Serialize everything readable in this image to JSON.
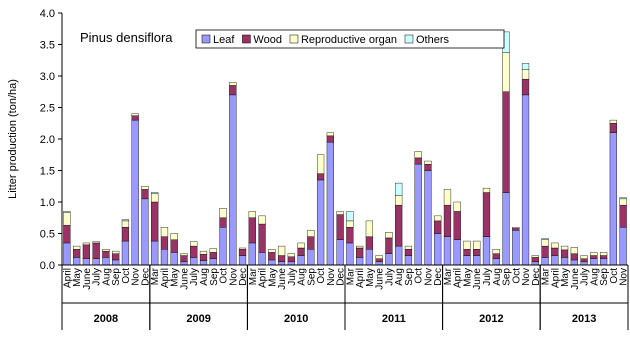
{
  "chart_data": {
    "type": "stacked_bar",
    "title": "Pinus densiflora",
    "y_label": "Litter production (ton/ha)",
    "groups": [
      {
        "label": "2008",
        "categories": [
          "April",
          "May",
          "June",
          "July",
          "Aug",
          "Sep",
          "Oct",
          "Nov",
          "Dec"
        ]
      },
      {
        "label": "2009",
        "categories": [
          "Mar",
          "April",
          "May",
          "June",
          "July",
          "Aug",
          "Sep",
          "Oct",
          "Nov",
          "Dec"
        ]
      },
      {
        "label": "2010",
        "categories": [
          "Mar",
          "April",
          "May",
          "June",
          "July",
          "Aug",
          "Sep",
          "Oct",
          "Nov",
          "Dec"
        ]
      },
      {
        "label": "2011",
        "categories": [
          "Mar",
          "April",
          "May",
          "June",
          "July",
          "Aug",
          "Sep",
          "Oct",
          "Nov",
          "Dec"
        ]
      },
      {
        "label": "2012",
        "categories": [
          "Mar",
          "April",
          "May",
          "June",
          "July",
          "Aug",
          "Sep",
          "Oct",
          "Nov",
          "Dec"
        ]
      },
      {
        "label": "2013",
        "categories": [
          "Mar",
          "April",
          "May",
          "June",
          "July",
          "Aug",
          "Sep",
          "Oct",
          "Nov"
        ]
      }
    ],
    "series": [
      {
        "name": "Leaf",
        "color": "#9999ff",
        "values": [
          0.35,
          0.12,
          0.1,
          0.1,
          0.12,
          0.08,
          0.38,
          2.3,
          1.05,
          0.38,
          0.25,
          0.2,
          0.05,
          0.12,
          0.07,
          0.1,
          0.6,
          2.7,
          0.15,
          0.35,
          0.2,
          0.08,
          0.05,
          0.05,
          0.15,
          0.25,
          1.35,
          1.95,
          0.4,
          0.35,
          0.12,
          0.25,
          0.05,
          0.18,
          0.3,
          0.15,
          1.6,
          1.5,
          0.5,
          0.45,
          0.4,
          0.15,
          0.15,
          0.45,
          0.1,
          1.15,
          0.55,
          2.7,
          0.05,
          0.12,
          0.15,
          0.12,
          0.08,
          0.05,
          0.1,
          0.1,
          2.1,
          0.6
        ]
      },
      {
        "name": "Wood",
        "color": "#993366",
        "values": [
          0.28,
          0.13,
          0.22,
          0.25,
          0.1,
          0.1,
          0.22,
          0.07,
          0.15,
          0.62,
          0.2,
          0.2,
          0.1,
          0.18,
          0.1,
          0.1,
          0.15,
          0.15,
          0.1,
          0.4,
          0.45,
          0.12,
          0.1,
          0.08,
          0.12,
          0.2,
          0.1,
          0.1,
          0.4,
          0.25,
          0.15,
          0.2,
          0.05,
          0.25,
          0.65,
          0.1,
          0.1,
          0.1,
          0.2,
          0.5,
          0.45,
          0.1,
          0.1,
          0.7,
          0.08,
          1.6,
          0.03,
          0.25,
          0.07,
          0.18,
          0.12,
          0.12,
          0.1,
          0.05,
          0.05,
          0.05,
          0.15,
          0.35
        ]
      },
      {
        "name": "Reproductive organ",
        "color": "#ffffcc",
        "values": [
          0.2,
          0.05,
          0.03,
          0.02,
          0.03,
          0.04,
          0.1,
          0.03,
          0.05,
          0.13,
          0.15,
          0.1,
          0.03,
          0.07,
          0.05,
          0.06,
          0.15,
          0.05,
          0.02,
          0.1,
          0.13,
          0.05,
          0.15,
          0.05,
          0.08,
          0.1,
          0.3,
          0.05,
          0.05,
          0.1,
          0.03,
          0.25,
          0.05,
          0.09,
          0.15,
          0.05,
          0.1,
          0.05,
          0.08,
          0.25,
          0.15,
          0.13,
          0.13,
          0.07,
          0.07,
          0.62,
          0.02,
          0.15,
          0.03,
          0.1,
          0.08,
          0.06,
          0.1,
          0.05,
          0.05,
          0.05,
          0.05,
          0.1
        ]
      },
      {
        "name": "Others",
        "color": "#ccffff",
        "values": [
          0.02,
          0,
          0,
          0,
          0,
          0,
          0.02,
          0,
          0,
          0.02,
          0,
          0,
          0,
          0,
          0,
          0,
          0,
          0,
          0,
          0,
          0,
          0,
          0,
          0,
          0,
          0,
          0,
          0,
          0,
          0.15,
          0,
          0,
          0,
          0,
          0.2,
          0,
          0,
          0,
          0,
          0,
          0,
          0,
          0,
          0,
          0,
          0.33,
          0,
          0.1,
          0,
          0.02,
          0,
          0,
          0,
          0,
          0,
          0,
          0,
          0.02
        ]
      }
    ],
    "ylim": [
      0,
      4
    ],
    "yticks": [
      {
        "value": 0,
        "label": "0.0"
      },
      {
        "value": 0.5,
        "label": "0.5"
      },
      {
        "value": 1,
        "label": "1.0"
      },
      {
        "value": 1.5,
        "label": "1.5"
      },
      {
        "value": 2,
        "label": "2.0"
      },
      {
        "value": 2.5,
        "label": "2.5"
      },
      {
        "value": 3,
        "label": "3.0"
      },
      {
        "value": 3.5,
        "label": "3.5"
      },
      {
        "value": 4,
        "label": "4.0"
      }
    ],
    "legend": "top-right"
  }
}
